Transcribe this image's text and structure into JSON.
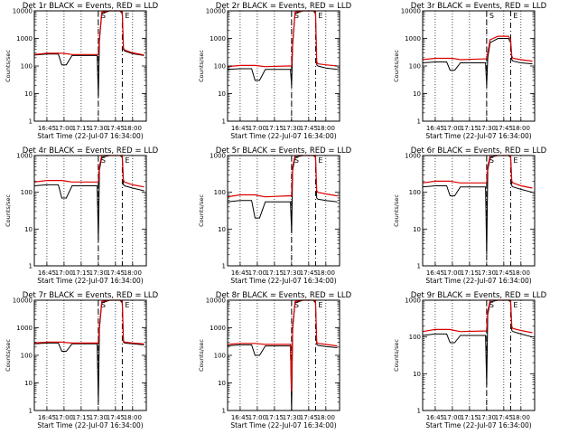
{
  "colors": {
    "events": "#000000",
    "lld": "#dd0000",
    "frame": "#000000"
  },
  "x_tick_labels": [
    "16:45",
    "17:00",
    "17:15",
    "17:30",
    "17:45",
    "18:00"
  ],
  "y_tick_labels": [
    "1",
    "10",
    "100",
    "1000",
    "10000"
  ],
  "chart_data": [
    {
      "type": "line",
      "title": "Det 1r BLACK = Events, RED = LLD",
      "xlabel": "Start Time (22-Jul-07 16:34:00)",
      "ylabel": "Counts/sec",
      "ylim": [
        1,
        10000
      ],
      "y_scale": "log",
      "xlim": [
        "16:34",
        "18:12"
      ],
      "markers": [
        {
          "label": "S",
          "time": "17:30"
        },
        {
          "label": "E",
          "time": "17:51"
        }
      ],
      "x": [
        "16:34",
        "16:45",
        "16:55",
        "16:58",
        "17:02",
        "17:07",
        "17:27",
        "17:29",
        "17:30",
        "17:31",
        "17:33",
        "17:40",
        "17:45",
        "17:49",
        "17:51",
        "17:52",
        "17:53",
        "18:00",
        "18:10"
      ],
      "series": [
        {
          "name": "Events",
          "values": [
            250,
            270,
            270,
            110,
            110,
            240,
            240,
            240,
            8,
            800,
            8000,
            10000,
            10000,
            10000,
            8000,
            400,
            350,
            280,
            240
          ]
        },
        {
          "name": "LLD",
          "values": [
            260,
            290,
            290,
            290,
            280,
            260,
            260,
            260,
            260,
            1000,
            9000,
            12000,
            12000,
            12000,
            9000,
            450,
            380,
            300,
            250
          ]
        }
      ]
    },
    {
      "type": "line",
      "title": "Det 2r BLACK = Events, RED = LLD",
      "xlabel": "Start Time (22-Jul-07 16:34:00)",
      "ylabel": "Counts/sec",
      "ylim": [
        1,
        10000
      ],
      "y_scale": "log",
      "xlim": [
        "16:34",
        "18:12"
      ],
      "markers": [
        {
          "label": "S",
          "time": "17:30"
        },
        {
          "label": "E",
          "time": "17:51"
        }
      ],
      "x": [
        "16:34",
        "16:45",
        "16:55",
        "16:58",
        "17:02",
        "17:07",
        "17:27",
        "17:29",
        "17:30",
        "17:31",
        "17:33",
        "17:40",
        "17:45",
        "17:49",
        "17:51",
        "17:52",
        "17:53",
        "18:00",
        "18:10"
      ],
      "series": [
        {
          "name": "Events",
          "values": [
            75,
            80,
            80,
            30,
            30,
            75,
            75,
            75,
            20,
            600,
            8000,
            10000,
            10000,
            10000,
            8000,
            110,
            100,
            85,
            75
          ]
        },
        {
          "name": "LLD",
          "values": [
            95,
            105,
            105,
            105,
            100,
            95,
            100,
            100,
            100,
            700,
            9000,
            12000,
            12000,
            12000,
            9000,
            140,
            120,
            110,
            100
          ]
        }
      ]
    },
    {
      "type": "line",
      "title": "Det 3r BLACK = Events, RED = LLD",
      "xlabel": "Start Time (22-Jul-07 16:34:00)",
      "ylabel": "Counts/sec",
      "ylim": [
        1,
        10000
      ],
      "y_scale": "log",
      "xlim": [
        "16:34",
        "18:12"
      ],
      "markers": [
        {
          "label": "S",
          "time": "17:30"
        },
        {
          "label": "E",
          "time": "17:51"
        }
      ],
      "x": [
        "16:34",
        "16:45",
        "16:55",
        "16:58",
        "17:02",
        "17:07",
        "17:27",
        "17:29",
        "17:30",
        "17:31",
        "17:33",
        "17:40",
        "17:45",
        "17:49",
        "17:51",
        "17:52",
        "17:53",
        "18:00",
        "18:10"
      ],
      "series": [
        {
          "name": "Events",
          "values": [
            130,
            140,
            140,
            70,
            70,
            130,
            130,
            130,
            20,
            200,
            700,
            1000,
            1000,
            1000,
            700,
            170,
            150,
            130,
            120
          ]
        },
        {
          "name": "LLD",
          "values": [
            170,
            190,
            190,
            190,
            185,
            170,
            180,
            180,
            190,
            300,
            900,
            1200,
            1200,
            1200,
            900,
            230,
            190,
            170,
            150
          ]
        }
      ]
    },
    {
      "type": "line",
      "title": "Det 4r BLACK = Events, RED = LLD",
      "xlabel": "Start Time (22-Jul-07 16:34:00)",
      "ylabel": "Counts/sec",
      "ylim": [
        1,
        1000
      ],
      "y_scale": "log",
      "xlim": [
        "16:34",
        "18:12"
      ],
      "markers": [
        {
          "label": "S",
          "time": "17:30"
        },
        {
          "label": "E",
          "time": "17:51"
        }
      ],
      "x": [
        "16:34",
        "16:45",
        "16:55",
        "16:58",
        "17:02",
        "17:07",
        "17:27",
        "17:29",
        "17:30",
        "17:31",
        "17:33",
        "17:40",
        "17:45",
        "17:49",
        "17:51",
        "17:52",
        "17:53",
        "18:00",
        "18:10"
      ],
      "series": [
        {
          "name": "Events",
          "values": [
            150,
            160,
            160,
            70,
            70,
            150,
            150,
            150,
            5,
            400,
            900,
            1000,
            1000,
            1000,
            900,
            160,
            150,
            130,
            110
          ]
        },
        {
          "name": "LLD",
          "values": [
            190,
            210,
            210,
            210,
            200,
            190,
            190,
            190,
            190,
            500,
            1000,
            1000,
            1000,
            1000,
            1000,
            210,
            190,
            160,
            140
          ]
        }
      ]
    },
    {
      "type": "line",
      "title": "Det 5r BLACK = Events, RED = LLD",
      "xlabel": "Start Time (22-Jul-07 16:34:00)",
      "ylabel": "Counts/sec",
      "ylim": [
        1,
        1000
      ],
      "y_scale": "log",
      "xlim": [
        "16:34",
        "18:12"
      ],
      "markers": [
        {
          "label": "S",
          "time": "17:30"
        },
        {
          "label": "E",
          "time": "17:51"
        }
      ],
      "x": [
        "16:34",
        "16:45",
        "16:55",
        "16:58",
        "17:02",
        "17:07",
        "17:27",
        "17:29",
        "17:30",
        "17:31",
        "17:33",
        "17:40",
        "17:45",
        "17:49",
        "17:51",
        "17:52",
        "17:53",
        "18:00",
        "18:10"
      ],
      "series": [
        {
          "name": "Events",
          "values": [
            55,
            60,
            60,
            20,
            20,
            55,
            55,
            55,
            8,
            400,
            900,
            1000,
            1000,
            1000,
            900,
            70,
            65,
            60,
            55
          ]
        },
        {
          "name": "LLD",
          "values": [
            75,
            85,
            85,
            85,
            80,
            75,
            80,
            80,
            80,
            500,
            1000,
            1000,
            1000,
            1000,
            1000,
            110,
            100,
            90,
            80
          ]
        }
      ]
    },
    {
      "type": "line",
      "title": "Det 6r BLACK = Events, RED = LLD",
      "xlabel": "Start Time (22-Jul-07 16:34:00)",
      "ylabel": "Counts/sec",
      "ylim": [
        1,
        1000
      ],
      "y_scale": "log",
      "xlim": [
        "16:34",
        "18:12"
      ],
      "markers": [
        {
          "label": "S",
          "time": "17:30"
        },
        {
          "label": "E",
          "time": "17:51"
        }
      ],
      "x": [
        "16:34",
        "16:45",
        "16:55",
        "16:58",
        "17:02",
        "17:07",
        "17:27",
        "17:29",
        "17:30",
        "17:31",
        "17:33",
        "17:40",
        "17:45",
        "17:49",
        "17:51",
        "17:52",
        "17:53",
        "18:00",
        "18:10"
      ],
      "series": [
        {
          "name": "Events",
          "values": [
            140,
            150,
            150,
            80,
            80,
            140,
            140,
            140,
            2,
            400,
            900,
            1000,
            1000,
            1000,
            900,
            150,
            140,
            120,
            100
          ]
        },
        {
          "name": "LLD",
          "values": [
            180,
            200,
            200,
            200,
            190,
            180,
            180,
            180,
            185,
            500,
            1000,
            1000,
            1000,
            1000,
            1000,
            200,
            180,
            150,
            130
          ]
        }
      ]
    },
    {
      "type": "line",
      "title": "Det 7r BLACK = Events, RED = LLD",
      "xlabel": "Start Time (22-Jul-07 16:34:00)",
      "ylabel": "Counts/sec",
      "ylim": [
        1,
        10000
      ],
      "y_scale": "log",
      "xlim": [
        "16:34",
        "18:12"
      ],
      "markers": [
        {
          "label": "S",
          "time": "17:30"
        },
        {
          "label": "E",
          "time": "17:51"
        }
      ],
      "x": [
        "16:34",
        "16:45",
        "16:55",
        "16:58",
        "17:02",
        "17:07",
        "17:27",
        "17:29",
        "17:30",
        "17:31",
        "17:33",
        "17:40",
        "17:45",
        "17:49",
        "17:51",
        "17:52",
        "17:53",
        "18:00",
        "18:10"
      ],
      "series": [
        {
          "name": "Events",
          "values": [
            260,
            280,
            280,
            140,
            140,
            260,
            260,
            260,
            2,
            900,
            8000,
            10000,
            10000,
            10000,
            8000,
            300,
            280,
            260,
            240
          ]
        },
        {
          "name": "LLD",
          "values": [
            280,
            300,
            300,
            300,
            290,
            280,
            280,
            280,
            280,
            1200,
            9000,
            12000,
            12000,
            12000,
            9000,
            330,
            300,
            280,
            260
          ]
        }
      ]
    },
    {
      "type": "line",
      "title": "Det 8r BLACK = Events, RED = LLD",
      "xlabel": "Start Time (22-Jul-07 16:34:00)",
      "ylabel": "Counts/sec",
      "ylim": [
        1,
        10000
      ],
      "y_scale": "log",
      "xlim": [
        "16:34",
        "18:12"
      ],
      "markers": [
        {
          "label": "S",
          "time": "17:30"
        },
        {
          "label": "E",
          "time": "17:51"
        }
      ],
      "x": [
        "16:34",
        "16:45",
        "16:55",
        "16:58",
        "17:02",
        "17:07",
        "17:27",
        "17:29",
        "17:30",
        "17:31",
        "17:33",
        "17:40",
        "17:45",
        "17:49",
        "17:51",
        "17:52",
        "17:53",
        "18:00",
        "18:10"
      ],
      "series": [
        {
          "name": "Events",
          "values": [
            220,
            240,
            240,
            100,
            100,
            220,
            220,
            220,
            1,
            900,
            8000,
            10000,
            10000,
            10000,
            8000,
            250,
            230,
            210,
            190
          ]
        },
        {
          "name": "LLD",
          "values": [
            250,
            270,
            270,
            270,
            260,
            250,
            250,
            250,
            5,
            1200,
            9000,
            12000,
            12000,
            12000,
            9000,
            300,
            270,
            250,
            220
          ]
        }
      ]
    },
    {
      "type": "line",
      "title": "Det 9r BLACK = Events, RED = LLD",
      "xlabel": "Start Time (22-Jul-07 16:34:00)",
      "ylabel": "Counts/sec",
      "ylim": [
        1,
        1000
      ],
      "y_scale": "log",
      "xlim": [
        "16:34",
        "18:12"
      ],
      "markers": [
        {
          "label": "S",
          "time": "17:30"
        },
        {
          "label": "E",
          "time": "17:51"
        }
      ],
      "x": [
        "16:34",
        "16:45",
        "16:55",
        "16:58",
        "17:02",
        "17:07",
        "17:27",
        "17:29",
        "17:30",
        "17:31",
        "17:33",
        "17:40",
        "17:45",
        "17:49",
        "17:51",
        "17:52",
        "17:53",
        "18:00",
        "18:10"
      ],
      "series": [
        {
          "name": "Events",
          "values": [
            110,
            120,
            120,
            70,
            70,
            110,
            110,
            110,
            5,
            400,
            900,
            1000,
            1000,
            1000,
            900,
            150,
            140,
            120,
            100
          ]
        },
        {
          "name": "LLD",
          "values": [
            140,
            160,
            160,
            160,
            150,
            140,
            145,
            145,
            150,
            500,
            1000,
            1000,
            1000,
            1000,
            1000,
            190,
            170,
            150,
            130
          ]
        }
      ]
    }
  ]
}
